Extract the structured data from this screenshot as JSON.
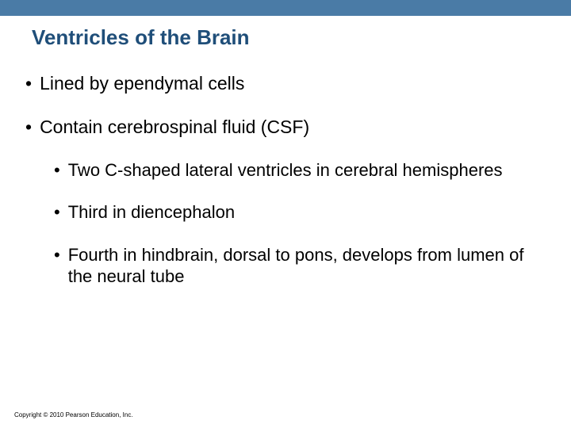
{
  "colors": {
    "topbar": "#4a7ba6",
    "title": "#1f4e79",
    "body_text": "#000000",
    "background": "#ffffff"
  },
  "typography": {
    "title_fontsize": 26,
    "title_weight": "bold",
    "l1_fontsize": 23,
    "l2_fontsize": 22,
    "copyright_fontsize": 8,
    "font_family": "Arial"
  },
  "title": "Ventricles of the Brain",
  "bullets_l1": [
    "Lined by ependymal cells",
    "Contain cerebrospinal fluid (CSF)"
  ],
  "bullets_l2": [
    "Two C-shaped lateral ventricles in cerebral hemispheres",
    "Third in diencephalon",
    "Fourth in hindbrain, dorsal to pons, develops from lumen of the neural tube"
  ],
  "copyright": "Copyright © 2010 Pearson Education, Inc."
}
